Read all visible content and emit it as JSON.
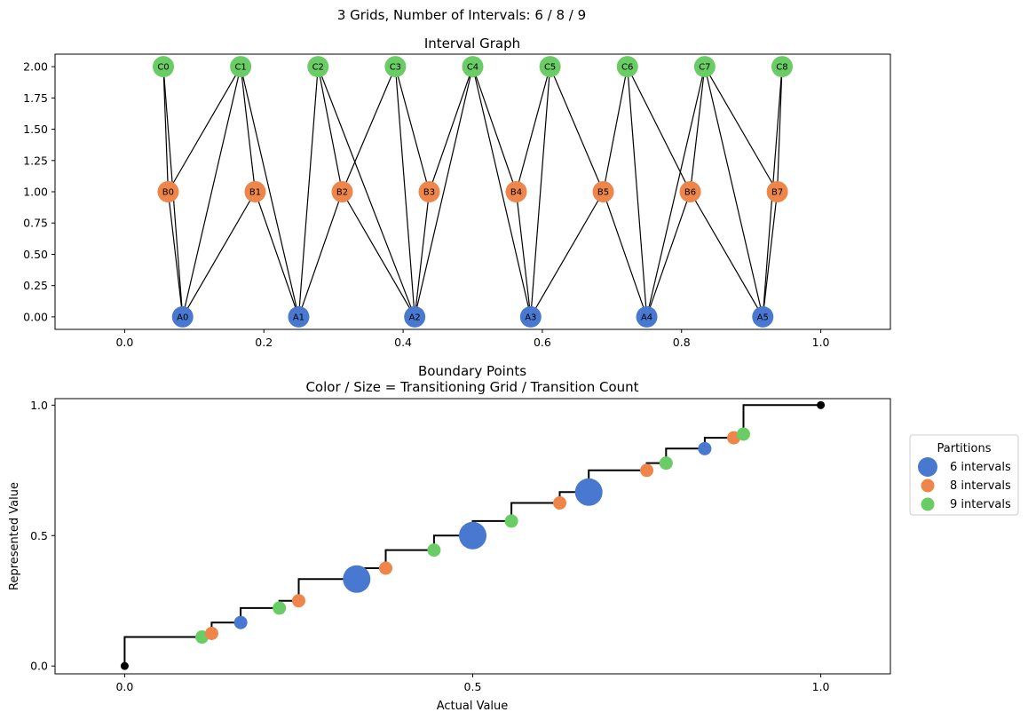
{
  "suptitle": "3 Grids, Number of Intervals: 6 / 8 / 9",
  "colors": {
    "A": "#4878d0",
    "B": "#ee854a",
    "C": "#6acc64",
    "edge": "#000000",
    "step": "#000000"
  },
  "chart_data": [
    {
      "type": "scatter",
      "title": "Interval Graph",
      "xlabel": "",
      "ylabel": "",
      "xlim": [
        -0.1,
        1.1
      ],
      "ylim": [
        -0.1,
        2.1
      ],
      "xticks": [
        "0.0",
        "0.2",
        "0.4",
        "0.6",
        "0.8",
        "1.0"
      ],
      "xtick_values": [
        0.0,
        0.2,
        0.4,
        0.6,
        0.8,
        1.0
      ],
      "yticks": [
        "0.00",
        "0.25",
        "0.50",
        "0.75",
        "1.00",
        "1.25",
        "1.50",
        "1.75",
        "2.00"
      ],
      "ytick_values": [
        0.0,
        0.25,
        0.5,
        0.75,
        1.0,
        1.25,
        1.5,
        1.75,
        2.0
      ],
      "nodes": [
        {
          "label": "A0",
          "group": "A",
          "x": 0.0833,
          "y": 0
        },
        {
          "label": "A1",
          "group": "A",
          "x": 0.25,
          "y": 0
        },
        {
          "label": "A2",
          "group": "A",
          "x": 0.4167,
          "y": 0
        },
        {
          "label": "A3",
          "group": "A",
          "x": 0.5833,
          "y": 0
        },
        {
          "label": "A4",
          "group": "A",
          "x": 0.75,
          "y": 0
        },
        {
          "label": "A5",
          "group": "A",
          "x": 0.9167,
          "y": 0
        },
        {
          "label": "B0",
          "group": "B",
          "x": 0.0625,
          "y": 1
        },
        {
          "label": "B1",
          "group": "B",
          "x": 0.1875,
          "y": 1
        },
        {
          "label": "B2",
          "group": "B",
          "x": 0.3125,
          "y": 1
        },
        {
          "label": "B3",
          "group": "B",
          "x": 0.4375,
          "y": 1
        },
        {
          "label": "B4",
          "group": "B",
          "x": 0.5625,
          "y": 1
        },
        {
          "label": "B5",
          "group": "B",
          "x": 0.6875,
          "y": 1
        },
        {
          "label": "B6",
          "group": "B",
          "x": 0.8125,
          "y": 1
        },
        {
          "label": "B7",
          "group": "B",
          "x": 0.9375,
          "y": 1
        },
        {
          "label": "C0",
          "group": "C",
          "x": 0.0556,
          "y": 2
        },
        {
          "label": "C1",
          "group": "C",
          "x": 0.1667,
          "y": 2
        },
        {
          "label": "C2",
          "group": "C",
          "x": 0.2778,
          "y": 2
        },
        {
          "label": "C3",
          "group": "C",
          "x": 0.3889,
          "y": 2
        },
        {
          "label": "C4",
          "group": "C",
          "x": 0.5,
          "y": 2
        },
        {
          "label": "C5",
          "group": "C",
          "x": 0.6111,
          "y": 2
        },
        {
          "label": "C6",
          "group": "C",
          "x": 0.7222,
          "y": 2
        },
        {
          "label": "C7",
          "group": "C",
          "x": 0.8333,
          "y": 2
        },
        {
          "label": "C8",
          "group": "C",
          "x": 0.9444,
          "y": 2
        }
      ],
      "edges": [
        [
          "A0",
          "B0"
        ],
        [
          "A0",
          "B1"
        ],
        [
          "A1",
          "B1"
        ],
        [
          "A1",
          "B2"
        ],
        [
          "A2",
          "B2"
        ],
        [
          "A2",
          "B3"
        ],
        [
          "A3",
          "B4"
        ],
        [
          "A3",
          "B5"
        ],
        [
          "A4",
          "B5"
        ],
        [
          "A4",
          "B6"
        ],
        [
          "A5",
          "B6"
        ],
        [
          "A5",
          "B7"
        ],
        [
          "A0",
          "C0"
        ],
        [
          "A0",
          "C1"
        ],
        [
          "A1",
          "C1"
        ],
        [
          "A1",
          "C2"
        ],
        [
          "A2",
          "C2"
        ],
        [
          "A2",
          "C3"
        ],
        [
          "A2",
          "C4"
        ],
        [
          "A3",
          "C4"
        ],
        [
          "A3",
          "C5"
        ],
        [
          "A4",
          "C6"
        ],
        [
          "A4",
          "C7"
        ],
        [
          "A5",
          "C7"
        ],
        [
          "A5",
          "C8"
        ],
        [
          "B0",
          "C0"
        ],
        [
          "B0",
          "C1"
        ],
        [
          "B1",
          "C1"
        ],
        [
          "B2",
          "C2"
        ],
        [
          "B2",
          "C3"
        ],
        [
          "B3",
          "C3"
        ],
        [
          "B3",
          "C4"
        ],
        [
          "B4",
          "C4"
        ],
        [
          "B4",
          "C5"
        ],
        [
          "B5",
          "C5"
        ],
        [
          "B5",
          "C6"
        ],
        [
          "B6",
          "C6"
        ],
        [
          "B6",
          "C7"
        ],
        [
          "B7",
          "C7"
        ],
        [
          "B7",
          "C8"
        ]
      ]
    },
    {
      "type": "scatter",
      "title": "Boundary Points",
      "subtitle": "Color / Size = Transitioning Grid / Transition Count",
      "xlabel": "Actual Value",
      "ylabel": "Represented Value",
      "xlim": [
        -0.1,
        1.1
      ],
      "ylim": [
        -0.03,
        1.025
      ],
      "xticks": [
        "0.0",
        "0.5",
        "1.0"
      ],
      "xtick_values": [
        0.0,
        0.5,
        1.0
      ],
      "yticks": [
        "0.0",
        "0.5",
        "1.0"
      ],
      "ytick_values": [
        0.0,
        0.5,
        1.0
      ],
      "step_points": [
        [
          0,
          0
        ],
        [
          0,
          0.1111
        ],
        [
          0.1111,
          0.1111
        ],
        [
          0.1111,
          0.125
        ],
        [
          0.125,
          0.125
        ],
        [
          0.125,
          0.1667
        ],
        [
          0.1667,
          0.1667
        ],
        [
          0.1667,
          0.2222
        ],
        [
          0.2222,
          0.2222
        ],
        [
          0.2222,
          0.25
        ],
        [
          0.25,
          0.25
        ],
        [
          0.25,
          0.3333
        ],
        [
          0.3333,
          0.3333
        ],
        [
          0.3333,
          0.375
        ],
        [
          0.375,
          0.375
        ],
        [
          0.375,
          0.4444
        ],
        [
          0.4444,
          0.4444
        ],
        [
          0.4444,
          0.5
        ],
        [
          0.5,
          0.5
        ],
        [
          0.5,
          0.5556
        ],
        [
          0.5556,
          0.5556
        ],
        [
          0.5556,
          0.625
        ],
        [
          0.625,
          0.625
        ],
        [
          0.625,
          0.6667
        ],
        [
          0.6667,
          0.6667
        ],
        [
          0.6667,
          0.75
        ],
        [
          0.75,
          0.75
        ],
        [
          0.75,
          0.7778
        ],
        [
          0.7778,
          0.7778
        ],
        [
          0.7778,
          0.8333
        ],
        [
          0.8333,
          0.8333
        ],
        [
          0.8333,
          0.875
        ],
        [
          0.875,
          0.875
        ],
        [
          0.875,
          0.8889
        ],
        [
          0.8889,
          0.8889
        ],
        [
          0.8889,
          1.0
        ],
        [
          1.0,
          1.0
        ]
      ],
      "endpoints": [
        {
          "x": 0,
          "y": 0
        },
        {
          "x": 1.0,
          "y": 1.0
        }
      ],
      "points": [
        {
          "x": 0.1111,
          "y": 0.1111,
          "group": "C",
          "count": 1
        },
        {
          "x": 0.125,
          "y": 0.125,
          "group": "B",
          "count": 1
        },
        {
          "x": 0.1667,
          "y": 0.1667,
          "group": "A",
          "count": 1
        },
        {
          "x": 0.2222,
          "y": 0.2222,
          "group": "C",
          "count": 1
        },
        {
          "x": 0.25,
          "y": 0.25,
          "group": "B",
          "count": 1
        },
        {
          "x": 0.3333,
          "y": 0.3333,
          "group": "A",
          "count": 2
        },
        {
          "x": 0.375,
          "y": 0.375,
          "group": "B",
          "count": 1
        },
        {
          "x": 0.4444,
          "y": 0.4444,
          "group": "C",
          "count": 1
        },
        {
          "x": 0.5,
          "y": 0.5,
          "group": "A",
          "count": 2
        },
        {
          "x": 0.5556,
          "y": 0.5556,
          "group": "C",
          "count": 1
        },
        {
          "x": 0.625,
          "y": 0.625,
          "group": "B",
          "count": 1
        },
        {
          "x": 0.6667,
          "y": 0.6667,
          "group": "A",
          "count": 2
        },
        {
          "x": 0.75,
          "y": 0.75,
          "group": "B",
          "count": 1
        },
        {
          "x": 0.7778,
          "y": 0.7778,
          "group": "C",
          "count": 1
        },
        {
          "x": 0.8333,
          "y": 0.8333,
          "group": "A",
          "count": 1
        },
        {
          "x": 0.875,
          "y": 0.875,
          "group": "B",
          "count": 1
        },
        {
          "x": 0.8889,
          "y": 0.8889,
          "group": "C",
          "count": 1
        }
      ],
      "legend": {
        "title": "Partitions",
        "placement": "right",
        "items": [
          {
            "label": "6 intervals",
            "group": "A"
          },
          {
            "label": "8 intervals",
            "group": "B"
          },
          {
            "label": "9 intervals",
            "group": "C"
          }
        ]
      }
    }
  ]
}
